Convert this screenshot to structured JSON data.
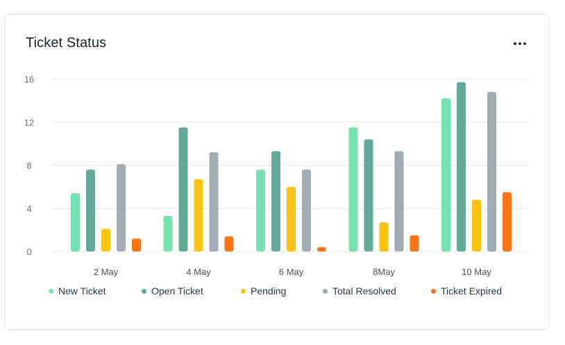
{
  "card": {
    "title": "Ticket Status",
    "menu_icon": "more-horizontal-icon"
  },
  "chart_data": {
    "type": "bar",
    "categories": [
      "2 May",
      "4 May",
      "6 May",
      "8May",
      "10 May"
    ],
    "ylim": [
      0,
      16
    ],
    "yticks": [
      "0",
      "4",
      "8",
      "12",
      "16"
    ],
    "grid": true,
    "legend_placement": "bottom",
    "series": [
      {
        "name": "New Ticket",
        "color": "#76e2b0",
        "values": [
          5.4,
          3.3,
          7.6,
          11.5,
          14.2
        ]
      },
      {
        "name": "Open Ticket",
        "color": "#62a89b",
        "values": [
          7.6,
          11.5,
          9.3,
          10.4,
          15.7
        ]
      },
      {
        "name": "Pending",
        "color": "#fdc20f",
        "values": [
          2.1,
          6.7,
          6.0,
          2.7,
          4.8
        ]
      },
      {
        "name": "Total Resolved",
        "color": "#a2abb2",
        "values": [
          8.1,
          9.2,
          7.6,
          9.3,
          14.8
        ]
      },
      {
        "name": "Ticket Expired",
        "color": "#fc7416",
        "values": [
          1.2,
          1.4,
          0.4,
          1.5,
          5.5
        ]
      }
    ]
  }
}
